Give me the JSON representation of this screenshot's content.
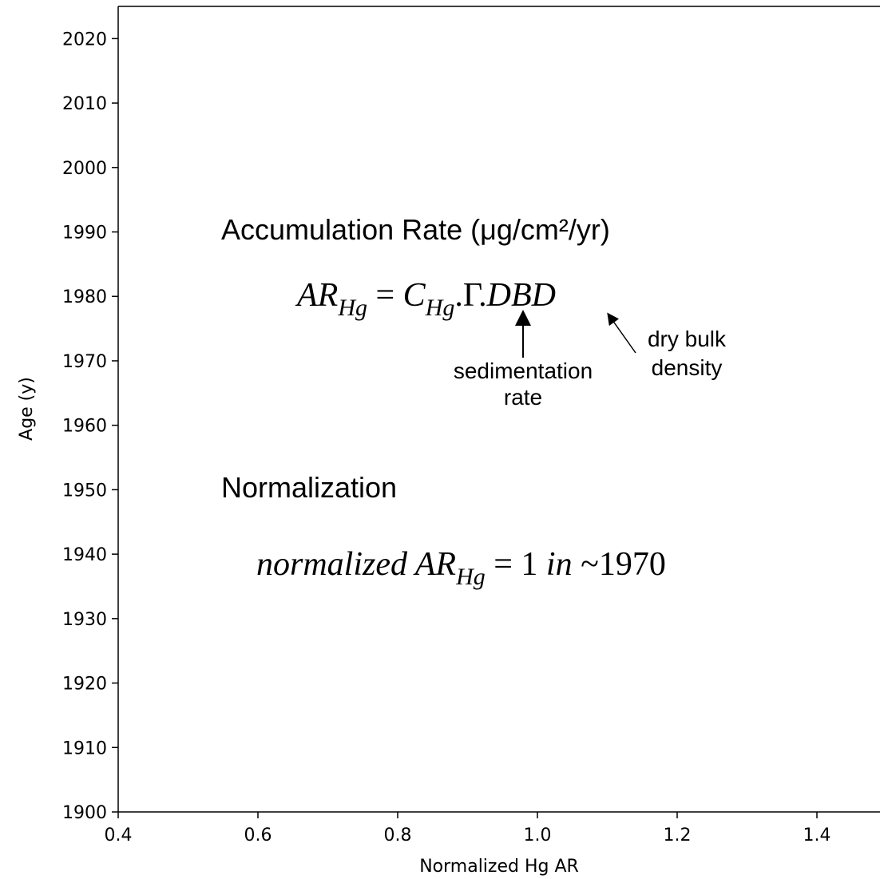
{
  "chart_data": {
    "type": "scatter",
    "xlabel": "Normalized Hg AR",
    "ylabel": "Age (y)",
    "xlim": [
      0.4,
      1.49
    ],
    "ylim": [
      1900,
      2025
    ],
    "xticks": [
      0.4,
      0.6,
      0.8,
      {
        "value": 1,
        "label": "1.0"
      },
      1.2,
      1.4
    ],
    "yticks": [
      1900,
      1910,
      1920,
      1930,
      1940,
      1950,
      1960,
      1970,
      1980,
      1990,
      2000,
      2010,
      2020
    ],
    "annotations": {
      "heading1": "Accumulation Rate (μg/cm²/yr)",
      "formula1": [
        {
          "text": "AR",
          "italic": true
        },
        {
          "text": "Hg",
          "italic": true,
          "sub": true
        },
        {
          "text": " = ",
          "italic": false
        },
        {
          "text": "C",
          "italic": true
        },
        {
          "text": "Hg",
          "italic": true,
          "sub": true
        },
        {
          "text": ".Γ.",
          "italic": false
        },
        {
          "text": "DBD",
          "italic": true
        }
      ],
      "arrow1_label": [
        "sedimentation",
        "rate"
      ],
      "arrow2_label": [
        "dry bulk",
        "density"
      ],
      "heading2": "Normalization",
      "formula2": [
        {
          "text": "normalized AR",
          "italic": true
        },
        {
          "text": "Hg",
          "italic": true,
          "sub": true
        },
        {
          "text": " = 1 ",
          "italic": false
        },
        {
          "text": "in",
          "italic": true
        },
        {
          "text": " ~1970",
          "italic": false
        }
      ]
    }
  }
}
